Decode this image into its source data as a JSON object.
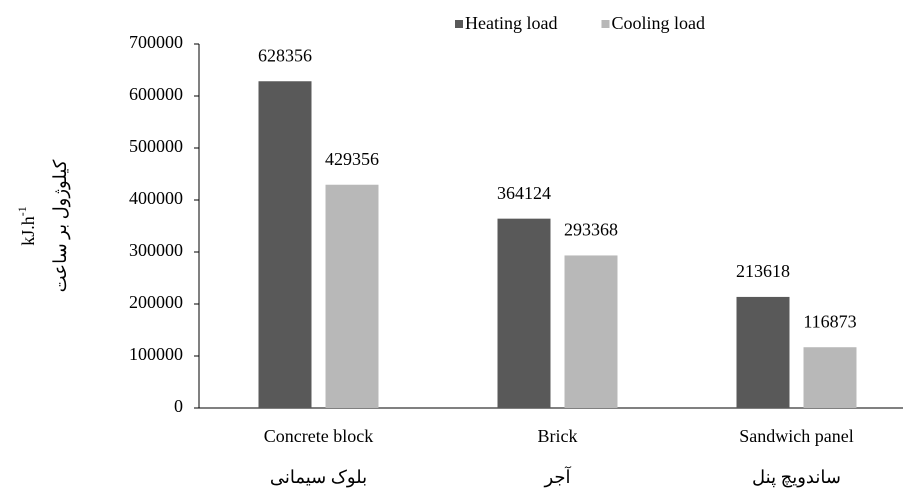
{
  "chart_data": {
    "type": "bar",
    "categories": [
      "Concrete block",
      "Brick",
      "Sandwich panel"
    ],
    "categories_secondary": [
      "بلوک سیمانی",
      "آجر",
      "ساندویچ پنل"
    ],
    "series": [
      {
        "name": "Heating load",
        "color": "#595959",
        "values": [
          628356,
          364124,
          213618
        ]
      },
      {
        "name": "Cooling load",
        "color": "#b8b8b8",
        "values": [
          429356,
          293368,
          116873
        ]
      }
    ],
    "y_label": "kJ.h",
    "y_label_sup": "-1",
    "y_label_secondary": "کیلوژول بر ساعت",
    "ylim": [
      0,
      700000
    ],
    "yticks": [
      0,
      100000,
      200000,
      300000,
      400000,
      500000,
      600000,
      700000
    ],
    "legend": "top",
    "grid": false
  }
}
